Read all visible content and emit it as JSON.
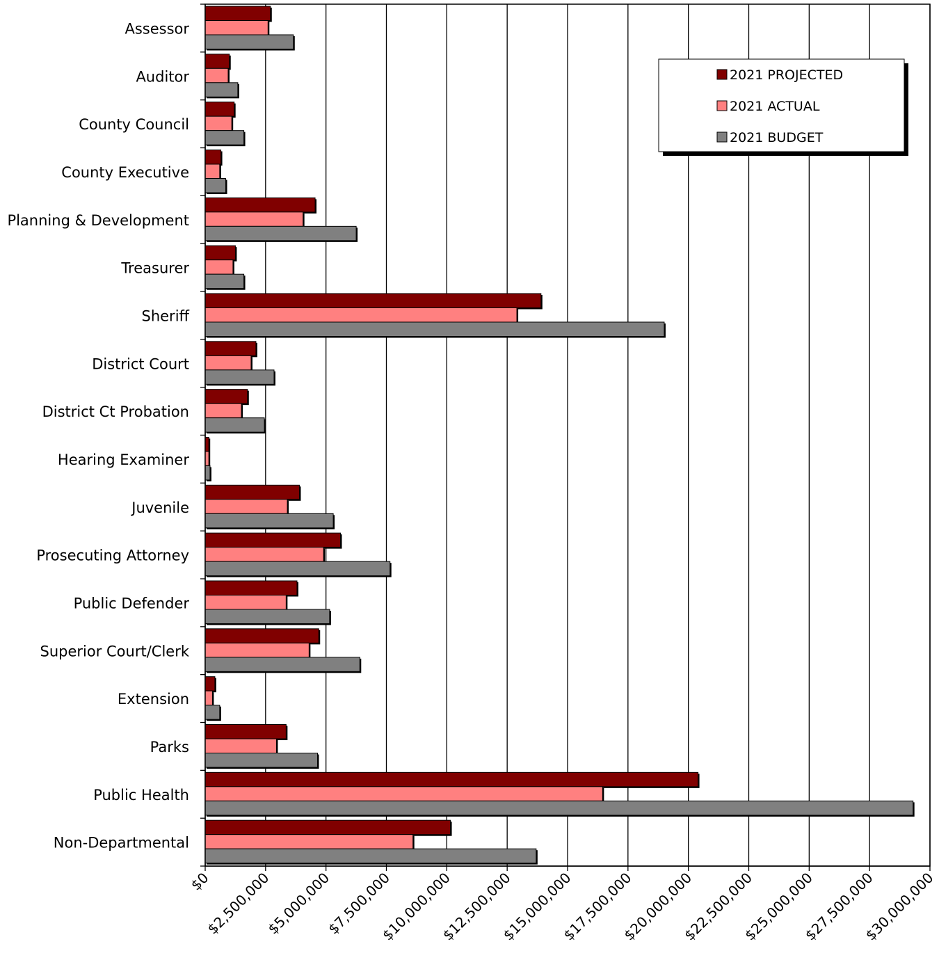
{
  "chart_data": {
    "type": "bar",
    "orientation": "horizontal",
    "title": "",
    "xlabel": "",
    "ylabel": "",
    "xlim": [
      0,
      30000000
    ],
    "grid": "vertical",
    "legend_position": "top-right",
    "categories": [
      "Assessor",
      "Auditor",
      "County Council",
      "County Executive",
      "Planning & Development",
      "Treasurer",
      "Sheriff",
      "District Court",
      "District Ct Probation",
      "Hearing Examiner",
      "Juvenile",
      "Prosecuting Attorney",
      "Public Defender",
      "Superior Court/Clerk",
      "Extension",
      "Parks",
      "Public Health",
      "Non-Departmental"
    ],
    "x_ticks": [
      0,
      2500000,
      5000000,
      7500000,
      10000000,
      12500000,
      15000000,
      17500000,
      20000000,
      22500000,
      25000000,
      27500000,
      30000000
    ],
    "x_tick_labels": [
      "$0",
      "$2,500,000",
      "$5,000,000",
      "$7,500,000",
      "$10,000,000",
      "$12,500,000",
      "$15,000,000",
      "$17,500,000",
      "$20,000,000",
      "$22,500,000",
      "$25,000,000",
      "$27,500,000",
      "$30,000,000"
    ],
    "series": [
      {
        "name": "2021 PROJECTED",
        "color": "#800000",
        "values": [
          2700000,
          1000000,
          1200000,
          650000,
          4550000,
          1250000,
          13900000,
          2100000,
          1750000,
          150000,
          3900000,
          5600000,
          3800000,
          4700000,
          400000,
          3350000,
          20400000,
          10150000
        ]
      },
      {
        "name": "2021 ACTUAL",
        "color": "#ff8080",
        "values": [
          2600000,
          950000,
          1100000,
          600000,
          4050000,
          1150000,
          12900000,
          1900000,
          1500000,
          150000,
          3400000,
          4900000,
          3350000,
          4300000,
          300000,
          2950000,
          16450000,
          8600000
        ]
      },
      {
        "name": "2021 BUDGET",
        "color": "#808080",
        "values": [
          3650000,
          1350000,
          1600000,
          850000,
          6250000,
          1600000,
          19000000,
          2850000,
          2450000,
          200000,
          5300000,
          7650000,
          5150000,
          6400000,
          600000,
          4650000,
          29300000,
          13700000
        ]
      }
    ]
  }
}
